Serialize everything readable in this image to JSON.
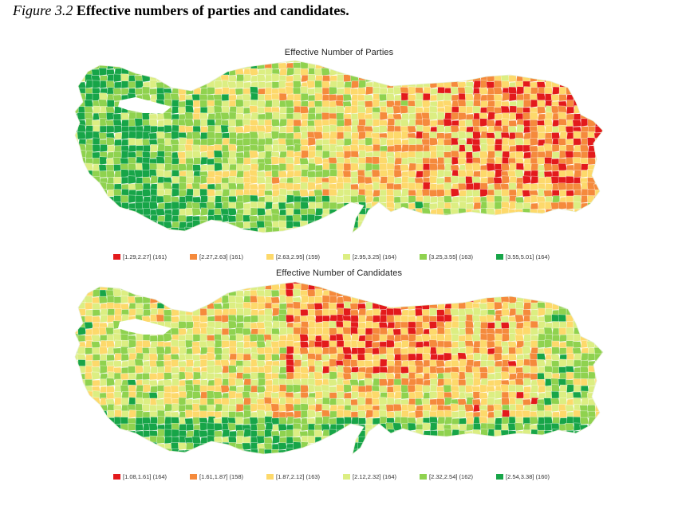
{
  "caption": {
    "number": "Figure 3.2",
    "text": "Effective numbers of parties and candidates."
  },
  "maps": [
    {
      "title": "Effective Number of Parties",
      "legend": [
        {
          "label": "[1.29,2.27] (161)",
          "color": "#e31a1c"
        },
        {
          "label": "[2.27,2.63] (161)",
          "color": "#f58a3c"
        },
        {
          "label": "[2.63,2.95] (159)",
          "color": "#fdd96b"
        },
        {
          "label": "[2.95,3.25] (164)",
          "color": "#dcee82"
        },
        {
          "label": "[3.25,3.55] (163)",
          "color": "#8fd24f"
        },
        {
          "label": "[3.55,5.01] (164)",
          "color": "#17a548"
        }
      ]
    },
    {
      "title": "Effective Number of Candidates",
      "legend": [
        {
          "label": "[1.08,1.61] (164)",
          "color": "#e31a1c"
        },
        {
          "label": "[1.61,1.87] (158)",
          "color": "#f58a3c"
        },
        {
          "label": "[1.87,2.12] (163)",
          "color": "#fdd96b"
        },
        {
          "label": "[2.12,2.32] (164)",
          "color": "#dcee82"
        },
        {
          "label": "[2.32,2.54] (162)",
          "color": "#8fd24f"
        },
        {
          "label": "[2.54,3.38] (160)",
          "color": "#17a548"
        }
      ]
    }
  ]
}
